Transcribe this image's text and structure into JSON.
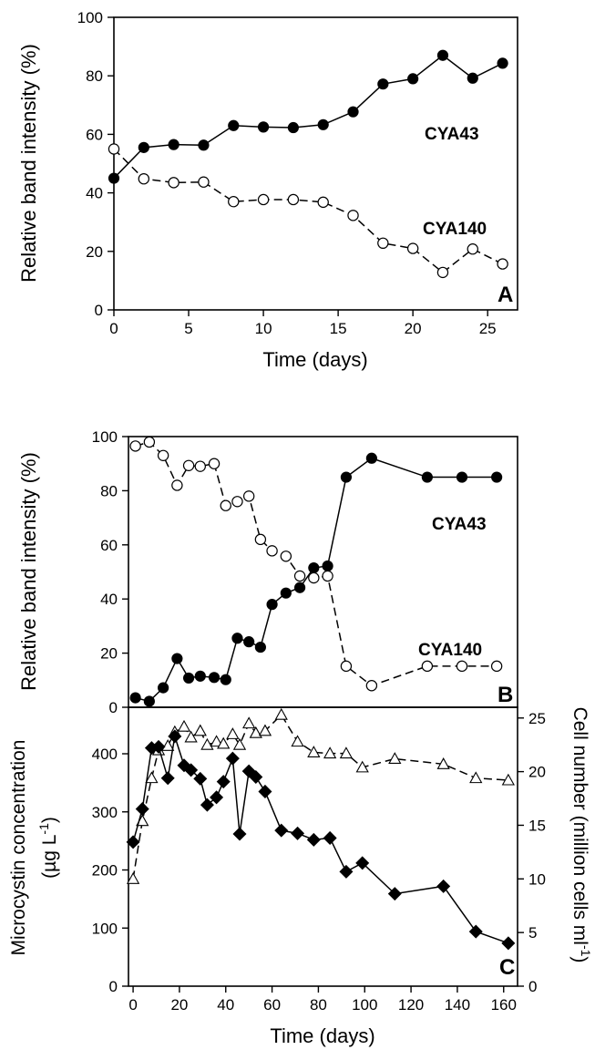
{
  "chart_data": [
    {
      "panel": "A",
      "type": "line",
      "xlabel": "Time (days)",
      "ylabel": "Relative band intensity (%)",
      "xlim": [
        0,
        27
      ],
      "ylim": [
        0,
        100
      ],
      "xticks": [
        "0",
        "5",
        "10",
        "15",
        "20",
        "25"
      ],
      "yticks": [
        "0",
        "20",
        "40",
        "60",
        "80",
        "100"
      ],
      "grid": false,
      "series": [
        {
          "name": "CYA43",
          "marker": "filled-circle",
          "line": "solid",
          "x": [
            0,
            2,
            4,
            6,
            8,
            10,
            12,
            14,
            16,
            18,
            20,
            22,
            24,
            26
          ],
          "y": [
            45,
            55.5,
            56.5,
            56.3,
            63,
            62.5,
            62.3,
            63.3,
            67.7,
            77.2,
            79,
            87,
            79.2,
            84.3
          ]
        },
        {
          "name": "CYA140",
          "marker": "open-circle",
          "line": "dashed",
          "x": [
            0,
            2,
            4,
            6,
            8,
            10,
            12,
            14,
            16,
            18,
            20,
            22,
            24,
            26
          ],
          "y": [
            55,
            44.8,
            43.5,
            43.7,
            37,
            37.7,
            37.7,
            36.8,
            32.3,
            22.8,
            21,
            12.8,
            20.8,
            15.7
          ]
        }
      ]
    },
    {
      "panel": "B",
      "type": "line",
      "xlabel": "",
      "ylabel": "Relative band intensity  (%)",
      "xlim": [
        -2,
        166
      ],
      "ylim": [
        0,
        100
      ],
      "yticks": [
        "0",
        "20",
        "40",
        "60",
        "80",
        "100"
      ],
      "grid": false,
      "series": [
        {
          "name": "CYA43",
          "marker": "filled-circle",
          "line": "solid",
          "x": [
            1,
            7,
            13,
            19,
            24,
            29,
            35,
            40,
            45,
            50,
            55,
            60,
            66,
            72,
            78,
            84,
            92,
            103,
            127,
            142,
            157
          ],
          "y": [
            3.5,
            2.2,
            7.2,
            18,
            10.8,
            11.5,
            11,
            10.2,
            25.5,
            24.2,
            22.2,
            38,
            42.2,
            44.2,
            51.5,
            52.2,
            85,
            92,
            85,
            85,
            85
          ]
        },
        {
          "name": "CYA140",
          "marker": "open-circle",
          "line": "dashed",
          "x": [
            1,
            7,
            13,
            19,
            24,
            29,
            35,
            40,
            45,
            50,
            55,
            60,
            66,
            72,
            78,
            84,
            92,
            103,
            127,
            142,
            157
          ],
          "y": [
            96.5,
            98,
            93,
            82,
            89.3,
            89,
            90,
            74.5,
            76,
            78,
            62,
            57.8,
            55.8,
            48.5,
            47.8,
            48.5,
            15.2,
            8,
            15.2,
            15.2,
            15.2
          ]
        }
      ]
    },
    {
      "panel": "C",
      "type": "line",
      "xlabel": "Time (days)",
      "ylabel_left": "Microcystin concentration (µg L-1)",
      "ylabel_right": "Cell number (million cells ml-1)",
      "xlim": [
        -2,
        166
      ],
      "ylim_left": [
        0,
        480
      ],
      "ylim_right": [
        0,
        26
      ],
      "xticks": [
        "0",
        "20",
        "40",
        "60",
        "80",
        "100",
        "120",
        "140",
        "160"
      ],
      "yticks_left": [
        "0",
        "100",
        "200",
        "300",
        "400"
      ],
      "yticks_right": [
        "0",
        "5",
        "10",
        "15",
        "20",
        "25"
      ],
      "grid": false,
      "series": [
        {
          "name": "",
          "axis": "left",
          "marker": "filled-diamond",
          "line": "solid",
          "x": [
            0,
            4,
            8,
            11,
            15,
            18,
            22,
            25,
            29,
            32,
            36,
            39,
            43,
            46,
            50,
            53,
            57,
            64,
            71,
            78,
            85,
            92,
            99,
            113,
            134,
            148,
            162
          ],
          "y": [
            248,
            305,
            410,
            412,
            358,
            430,
            380,
            372,
            357,
            312,
            325,
            352,
            392,
            262,
            370,
            360,
            335,
            268,
            263,
            252,
            255,
            197,
            212,
            159,
            172,
            94,
            74
          ]
        },
        {
          "name": "",
          "axis": "right",
          "marker": "open-triangle",
          "line": "dashed",
          "x": [
            0,
            4,
            8,
            11,
            15,
            18,
            22,
            25,
            29,
            32,
            36,
            39,
            43,
            46,
            50,
            53,
            57,
            64,
            71,
            78,
            85,
            92,
            99,
            113,
            134,
            148,
            162
          ],
          "y": [
            10,
            15.4,
            19.4,
            22,
            22.4,
            23.7,
            24.2,
            23.2,
            23.8,
            22.5,
            22.8,
            22.6,
            23.5,
            22.5,
            24.5,
            23.6,
            23.8,
            25.3,
            22.8,
            21.8,
            21.7,
            21.7,
            20.4,
            21.2,
            20.7,
            19.4,
            19.2
          ]
        }
      ]
    }
  ],
  "annotations": {
    "panel_a_letter": "A",
    "panel_b_letter": "B",
    "panel_c_letter": "C",
    "label_a_cya43": "CYA43",
    "label_a_cya140": "CYA140",
    "label_b_cya43": "CYA43",
    "label_b_cya140": "CYA140",
    "c_left_title_line1": "Microcystin concentration",
    "c_left_title_line2_prefix": "(µg L",
    "c_left_title_line2_sup": "-1",
    "c_left_title_line2_suffix": ")",
    "c_right_title_prefix": "Cell number (million cells ml",
    "c_right_title_sup": "-1",
    "c_right_title_suffix": ")"
  }
}
